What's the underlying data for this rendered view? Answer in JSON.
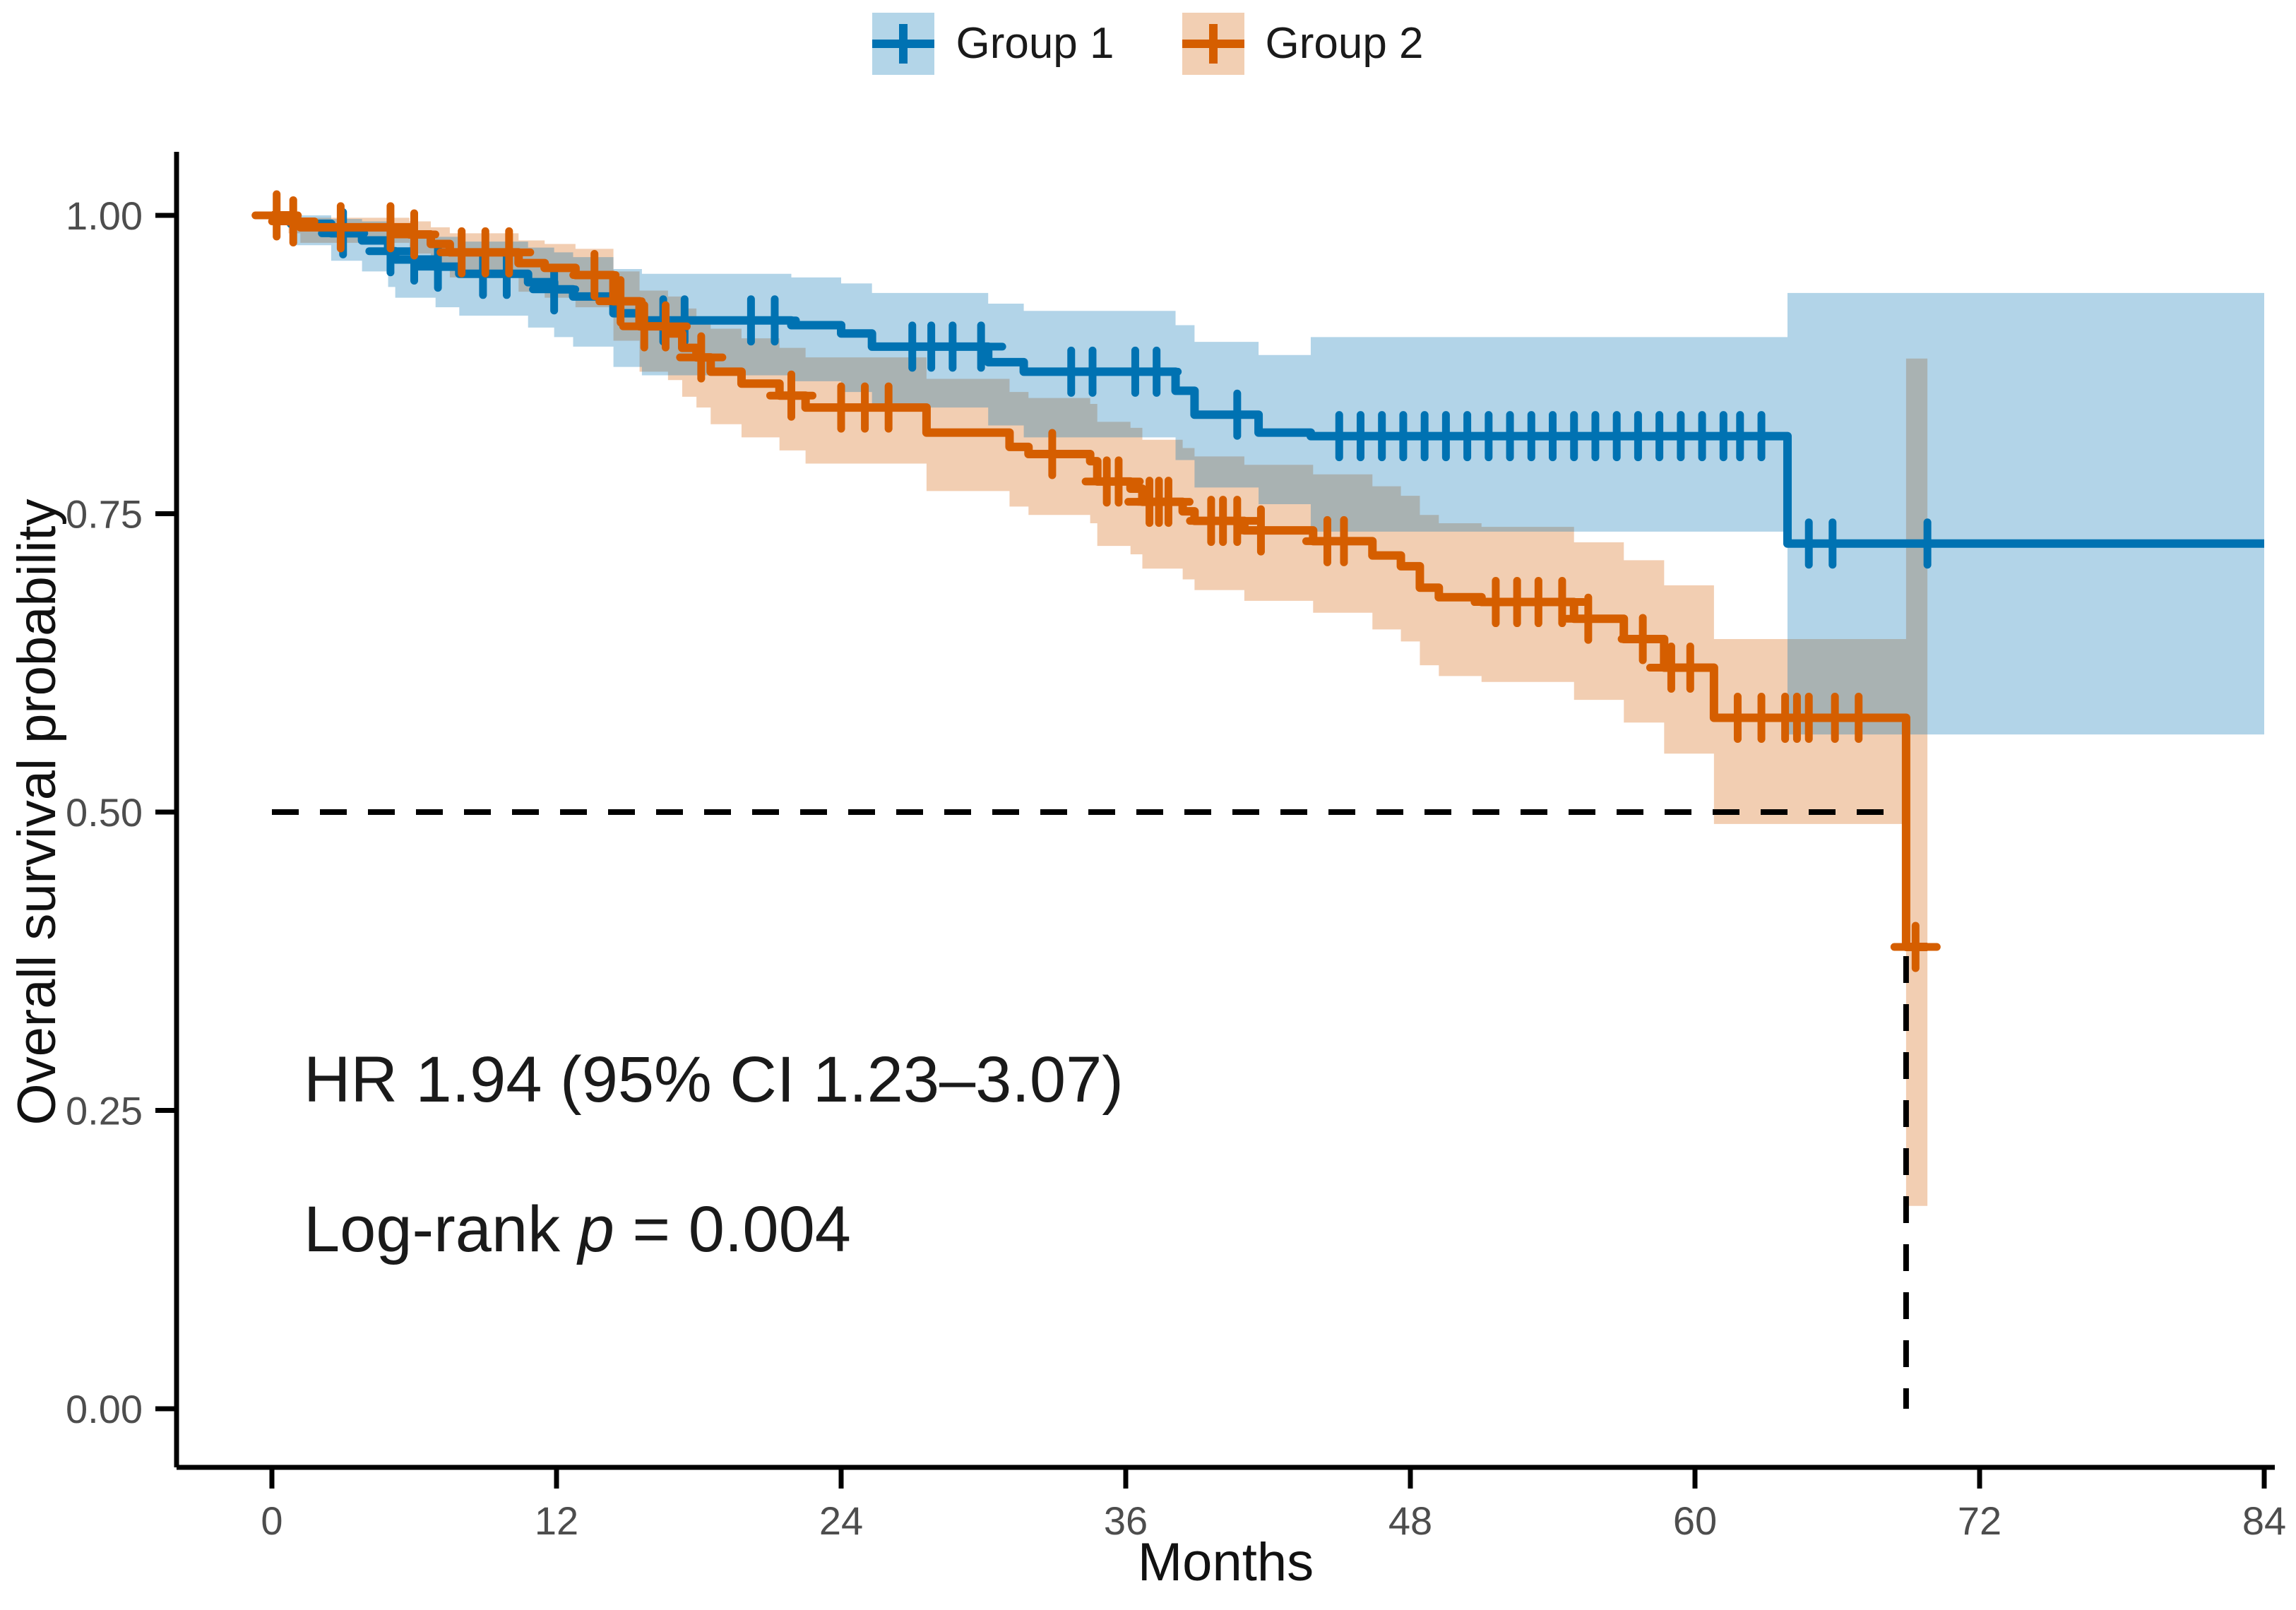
{
  "figure_title": "",
  "legend": {
    "position": "top",
    "items": [
      {
        "label": "Group 1",
        "line_color": "#0072B2",
        "band_fill": "#B3D5E8"
      },
      {
        "label": "Group 2",
        "line_color": "#D55E00",
        "band_fill": "#F2CFB3"
      }
    ]
  },
  "annotations": {
    "hr_text": "HR 1.94 (95% CI 1.23–3.07)",
    "logrank_prefix": "Log-rank ",
    "logrank_p_symbol": "p",
    "logrank_suffix": " = 0.004"
  },
  "chart_data": {
    "type": "line",
    "subtype": "kaplan-meier-step",
    "title": "",
    "xlabel": "Months",
    "ylabel": "Overall survival probability",
    "xlim": [
      0,
      84
    ],
    "ylim": [
      0.0,
      1.0
    ],
    "grid": false,
    "legend_position": "top",
    "xticks": [
      {
        "v": 0,
        "label": "0"
      },
      {
        "v": 12,
        "label": "12"
      },
      {
        "v": 24,
        "label": "24"
      },
      {
        "v": 36,
        "label": "36"
      },
      {
        "v": 48,
        "label": "48"
      },
      {
        "v": 60,
        "label": "60"
      },
      {
        "v": 72,
        "label": "72"
      },
      {
        "v": 84,
        "label": "84"
      }
    ],
    "yticks": [
      {
        "v": 1.0,
        "label": "1.00"
      },
      {
        "v": 0.75,
        "label": "0.75"
      },
      {
        "v": 0.5,
        "label": "0.50"
      },
      {
        "v": 0.25,
        "label": "0.25"
      },
      {
        "v": 0.0,
        "label": "0.00"
      }
    ],
    "median_line": {
      "y": 0.5,
      "x_cross": 68.9,
      "style": "dashed",
      "color": "#000000"
    },
    "series": [
      {
        "name": "Group 1",
        "color": "#0072B2",
        "band_opacity": 0.3,
        "end_t": 84,
        "steps": [
          [
            0,
            1.0
          ],
          [
            0.8,
            0.993
          ],
          [
            2.5,
            0.985
          ],
          [
            3.8,
            0.979
          ],
          [
            4.9,
            0.97
          ],
          [
            5.2,
            0.963
          ],
          [
            6.9,
            0.957
          ],
          [
            7.9,
            0.951
          ],
          [
            10.8,
            0.944
          ],
          [
            11.9,
            0.938
          ],
          [
            12.7,
            0.932
          ],
          [
            14.4,
            0.918
          ],
          [
            15.6,
            0.912
          ],
          [
            21.9,
            0.908
          ],
          [
            24.0,
            0.901
          ],
          [
            25.3,
            0.89
          ],
          [
            30.2,
            0.877
          ],
          [
            31.7,
            0.869
          ],
          [
            38.1,
            0.853
          ],
          [
            38.9,
            0.833
          ],
          [
            41.6,
            0.818
          ],
          [
            43.8,
            0.815
          ],
          [
            63.9,
            0.725
          ]
        ],
        "censor_times": [
          3.0,
          5.0,
          6.0,
          7.0,
          8.9,
          9.9,
          11.9,
          16.5,
          17.4,
          20.2,
          21.2,
          27.0,
          27.8,
          28.7,
          29.9,
          33.7,
          34.6,
          36.4,
          37.3,
          40.7,
          45.0,
          45.9,
          46.8,
          47.7,
          48.6,
          49.5,
          50.4,
          51.3,
          52.2,
          53.1,
          54.0,
          54.9,
          55.8,
          56.7,
          57.6,
          58.5,
          59.4,
          60.3,
          61.2,
          61.9,
          62.8,
          64.8,
          65.8,
          69.8
        ],
        "ci": [
          [
            0,
            1.0,
            1.0
          ],
          [
            0.8,
            0.975,
            1.0
          ],
          [
            2.5,
            0.962,
            0.997
          ],
          [
            3.8,
            0.953,
            0.995
          ],
          [
            4.9,
            0.94,
            0.99
          ],
          [
            5.2,
            0.931,
            0.986
          ],
          [
            6.9,
            0.923,
            0.982
          ],
          [
            7.9,
            0.916,
            0.978
          ],
          [
            10.8,
            0.906,
            0.973
          ],
          [
            11.9,
            0.898,
            0.969
          ],
          [
            12.7,
            0.89,
            0.965
          ],
          [
            14.4,
            0.873,
            0.955
          ],
          [
            15.6,
            0.866,
            0.951
          ],
          [
            21.9,
            0.861,
            0.948
          ],
          [
            24.0,
            0.852,
            0.943
          ],
          [
            25.3,
            0.839,
            0.935
          ],
          [
            30.2,
            0.824,
            0.926
          ],
          [
            31.7,
            0.814,
            0.92
          ],
          [
            38.1,
            0.795,
            0.908
          ],
          [
            38.9,
            0.772,
            0.894
          ],
          [
            41.6,
            0.758,
            0.883
          ],
          [
            43.8,
            0.735,
            0.898
          ],
          [
            63.9,
            0.565,
            0.935
          ]
        ]
      },
      {
        "name": "Group 2",
        "color": "#D55E00",
        "band_opacity": 0.3,
        "end_t": 69.8,
        "steps": [
          [
            0,
            1.0
          ],
          [
            0.7,
            0.995
          ],
          [
            1.2,
            0.99
          ],
          [
            5.8,
            0.984
          ],
          [
            6.7,
            0.976
          ],
          [
            7.5,
            0.969
          ],
          [
            10.4,
            0.96
          ],
          [
            11.5,
            0.956
          ],
          [
            12.8,
            0.95
          ],
          [
            14.4,
            0.928
          ],
          [
            15.5,
            0.907
          ],
          [
            16.7,
            0.901
          ],
          [
            17.3,
            0.889
          ],
          [
            17.9,
            0.881
          ],
          [
            18.5,
            0.869
          ],
          [
            19.8,
            0.859
          ],
          [
            21.4,
            0.849
          ],
          [
            22.5,
            0.839
          ],
          [
            27.6,
            0.818
          ],
          [
            31.1,
            0.806
          ],
          [
            31.9,
            0.8
          ],
          [
            34.5,
            0.794
          ],
          [
            34.8,
            0.777
          ],
          [
            36.2,
            0.771
          ],
          [
            36.7,
            0.76
          ],
          [
            38.4,
            0.752
          ],
          [
            38.9,
            0.744
          ],
          [
            41.0,
            0.736
          ],
          [
            43.9,
            0.727
          ],
          [
            46.4,
            0.715
          ],
          [
            47.6,
            0.706
          ],
          [
            48.4,
            0.688
          ],
          [
            49.2,
            0.68
          ],
          [
            51.0,
            0.676
          ],
          [
            54.9,
            0.662
          ],
          [
            57.0,
            0.645
          ],
          [
            58.7,
            0.621
          ],
          [
            60.8,
            0.579
          ],
          [
            68.9,
            0.387
          ]
        ],
        "censor_times": [
          0.2,
          0.9,
          2.9,
          5.0,
          6.0,
          8.0,
          9.0,
          10.0,
          13.6,
          14.7,
          15.7,
          16.6,
          18.1,
          21.9,
          24.0,
          25.0,
          26.0,
          32.9,
          35.2,
          35.7,
          37.0,
          37.4,
          37.8,
          39.6,
          40.1,
          40.7,
          41.7,
          44.5,
          45.2,
          51.6,
          52.5,
          53.4,
          54.4,
          55.5,
          57.8,
          59.0,
          59.8,
          61.8,
          62.8,
          63.8,
          64.3,
          64.8,
          65.9,
          66.9,
          69.3
        ],
        "ci": [
          [
            0,
            1.0,
            1.0
          ],
          [
            0.7,
            0.985,
            1.0
          ],
          [
            1.2,
            0.977,
            0.998
          ],
          [
            5.8,
            0.968,
            0.995
          ],
          [
            6.7,
            0.957,
            0.99
          ],
          [
            7.5,
            0.948,
            0.985
          ],
          [
            10.4,
            0.936,
            0.979
          ],
          [
            11.5,
            0.931,
            0.976
          ],
          [
            12.8,
            0.923,
            0.972
          ],
          [
            14.4,
            0.895,
            0.953
          ],
          [
            15.5,
            0.869,
            0.937
          ],
          [
            16.7,
            0.862,
            0.932
          ],
          [
            17.3,
            0.848,
            0.922
          ],
          [
            17.9,
            0.839,
            0.915
          ],
          [
            18.5,
            0.825,
            0.905
          ],
          [
            19.8,
            0.814,
            0.897
          ],
          [
            21.4,
            0.803,
            0.889
          ],
          [
            22.5,
            0.792,
            0.881
          ],
          [
            27.6,
            0.769,
            0.863
          ],
          [
            31.1,
            0.756,
            0.852
          ],
          [
            31.9,
            0.749,
            0.847
          ],
          [
            34.5,
            0.742,
            0.842
          ],
          [
            34.8,
            0.723,
            0.827
          ],
          [
            36.2,
            0.716,
            0.822
          ],
          [
            36.7,
            0.704,
            0.812
          ],
          [
            38.4,
            0.695,
            0.805
          ],
          [
            38.9,
            0.686,
            0.798
          ],
          [
            41.0,
            0.677,
            0.791
          ],
          [
            43.9,
            0.667,
            0.783
          ],
          [
            46.4,
            0.653,
            0.773
          ],
          [
            47.6,
            0.643,
            0.765
          ],
          [
            48.4,
            0.623,
            0.749
          ],
          [
            49.2,
            0.614,
            0.742
          ],
          [
            51.0,
            0.609,
            0.739
          ],
          [
            54.9,
            0.594,
            0.726
          ],
          [
            57.0,
            0.575,
            0.711
          ],
          [
            58.7,
            0.549,
            0.69
          ],
          [
            60.8,
            0.49,
            0.645
          ],
          [
            68.9,
            0.17,
            0.88
          ]
        ]
      }
    ],
    "style": {
      "tick_label_color": "#4d4d4d",
      "axis_color": "#000000",
      "annotation_color": "#1a1a1a",
      "curve_stroke_width": 12,
      "tick_label_size": 56,
      "axis_title_size": 76,
      "annotation_size": 92
    }
  }
}
